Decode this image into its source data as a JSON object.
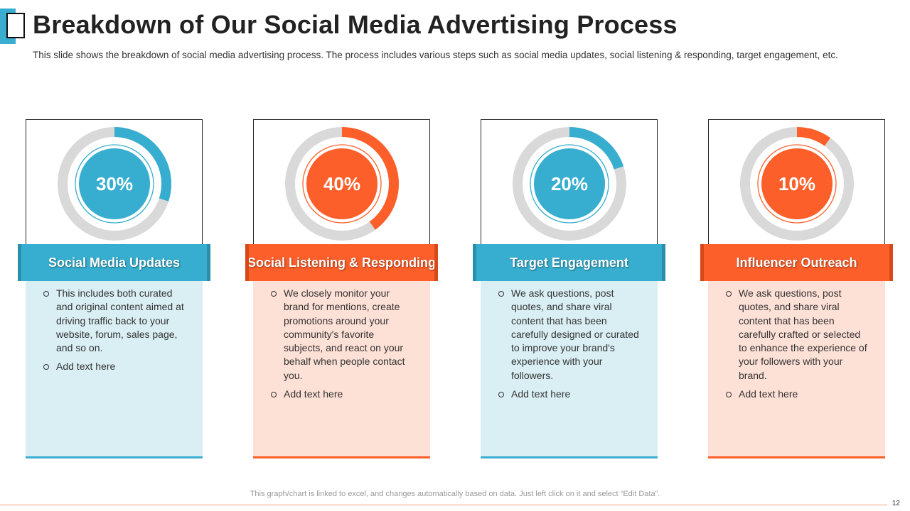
{
  "slide": {
    "title": "Breakdown of Our Social Media Advertising Process",
    "subtitle": "This slide shows the breakdown  of social media advertising process. The process includes various steps such as social media updates, social listening & responding, target engagement, etc.",
    "footer_note": "This graph/chart is linked to excel, and changes automatically based on data. Just left click on it and select “Edit Data”.",
    "page_number": "12"
  },
  "colors": {
    "teal": "#37aecf",
    "orange": "#fc5f2a",
    "track": "#d9d9d9"
  },
  "chart_data": {
    "type": "pie",
    "categories": [
      "Social Media Updates",
      "Social Listening & Responding",
      "Target Engagement",
      "Influencer Outreach"
    ],
    "values": [
      30,
      40,
      20,
      10
    ],
    "value_labels": [
      "30%",
      "40%",
      "20%",
      "10%"
    ]
  },
  "cards": [
    {
      "heading": "Social Media Updates",
      "theme": "teal",
      "bullets": [
        "This includes both curated and original content aimed at driving traffic back to your website, forum,  sales page, and so on.",
        "Add text here"
      ]
    },
    {
      "heading": "Social Listening & Responding",
      "theme": "orange",
      "bullets": [
        "We closely monitor your brand for mentions, create promotions around your community's favorite subjects, and react on your behalf when people contact you.",
        "Add text here"
      ]
    },
    {
      "heading": "Target Engagement",
      "theme": "teal",
      "bullets": [
        "We ask questions, post quotes, and share viral content that has been carefully designed or curated to improve  your brand's experience with your followers.",
        "Add text here"
      ]
    },
    {
      "heading": "Influencer Outreach",
      "theme": "orange",
      "bullets": [
        "We ask questions, post quotes, and share viral content that has been carefully crafted or selected to enhance the experience of your followers with your brand.",
        "Add text here"
      ]
    }
  ]
}
